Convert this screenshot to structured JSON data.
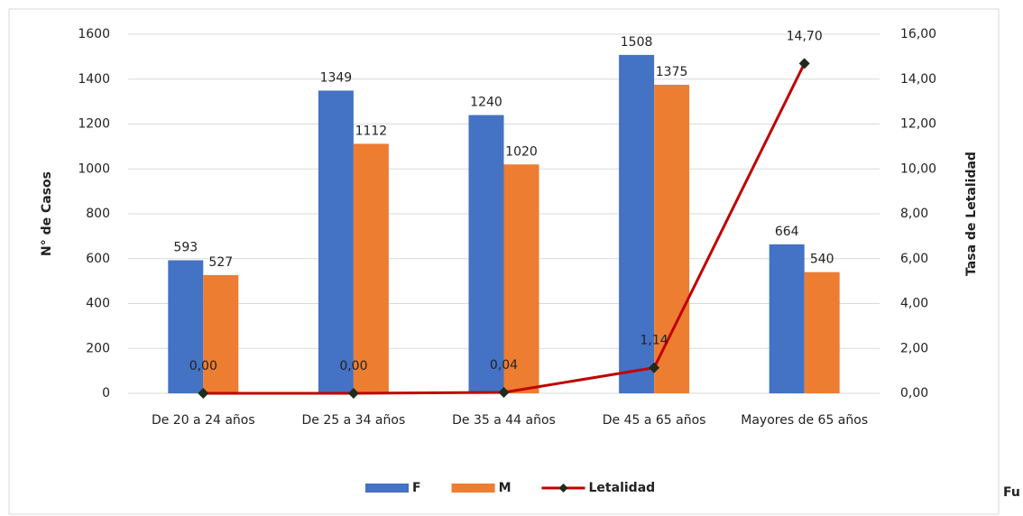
{
  "chart_data": {
    "type": "bar",
    "categories": [
      "De 20 a 24 años",
      "De 25 a 34 años",
      "De 35 a 44 años",
      "De 45 a 65 años",
      "Mayores de 65 años"
    ],
    "ylabel": "N° de Casos",
    "y2label": "Tasa de Letalidad",
    "ylim": [
      0,
      1600
    ],
    "yticks": [
      0,
      200,
      400,
      600,
      800,
      1000,
      1200,
      1400,
      1600
    ],
    "y2lim": [
      0,
      16
    ],
    "y2ticks": [
      {
        "value": 0,
        "label": "0,00"
      },
      {
        "value": 2,
        "label": "2,00"
      },
      {
        "value": 4,
        "label": "4,00"
      },
      {
        "value": 6,
        "label": "6,00"
      },
      {
        "value": 8,
        "label": "8,00"
      },
      {
        "value": 10,
        "label": "10,00"
      },
      {
        "value": 12,
        "label": "12,00"
      },
      {
        "value": 14,
        "label": "14,00"
      },
      {
        "value": 16,
        "label": "16,00"
      }
    ],
    "grid": true,
    "legend": "bottom",
    "series": [
      {
        "name": "F",
        "type": "bar",
        "color": "#4472c4",
        "values": [
          593,
          1349,
          1240,
          1508,
          664
        ]
      },
      {
        "name": "M",
        "type": "bar",
        "color": "#ed7d31",
        "values": [
          527,
          1112,
          1020,
          1375,
          540
        ]
      },
      {
        "name": "Letalidad",
        "type": "line",
        "axis": "y2",
        "color": "#c00000",
        "marker_color": "#1e2b1e",
        "values": [
          0,
          0,
          0.04,
          1.14,
          14.7
        ],
        "value_labels": [
          "0,00",
          "0,00",
          "0,04",
          "1,14",
          "14,70"
        ]
      }
    ],
    "annotation": "Fu"
  }
}
